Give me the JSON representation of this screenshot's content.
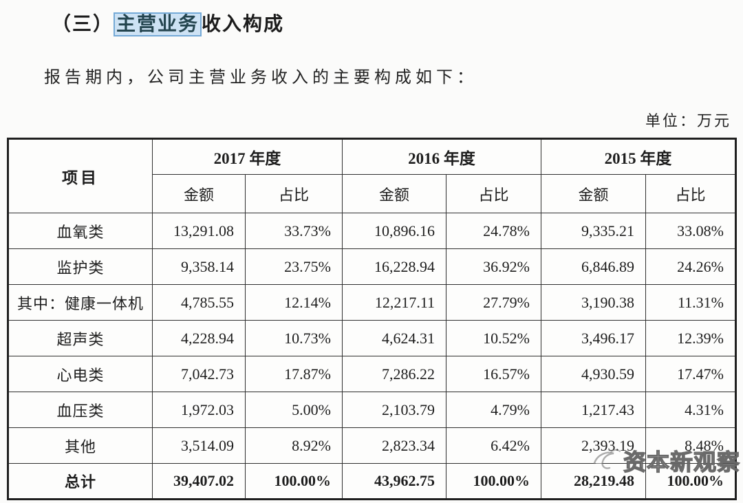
{
  "page": {
    "section_title_prefix": "（三）",
    "section_title_highlight": "主营业务",
    "section_title_suffix": "收入构成",
    "subtitle": "报告期内，公司主营业务收入的主要构成如下：",
    "unit_label": "单位：万元"
  },
  "colors": {
    "highlight_bg": "#cde2f4",
    "highlight_border": "#74a9d6",
    "table_border": "#2e2e2e",
    "page_bg": "#fbfbfa"
  },
  "watermark": {
    "text": "资本新观察",
    "logo_icon": "swirl-bird-logo"
  },
  "table": {
    "header": {
      "item": "项目",
      "year_groups": [
        "2017 年度",
        "2016 年度",
        "2015 年度"
      ],
      "amount_label": "金额",
      "share_label": "占比"
    },
    "rows": [
      {
        "label": "血氧类",
        "cells": [
          "13,291.08",
          "33.73%",
          "10,896.16",
          "24.78%",
          "9,335.21",
          "33.08%"
        ],
        "is_total": false
      },
      {
        "label": "监护类",
        "cells": [
          "9,358.14",
          "23.75%",
          "16,228.94",
          "36.92%",
          "6,846.89",
          "24.26%"
        ],
        "is_total": false
      },
      {
        "label": "其中：健康一体机",
        "cells": [
          "4,785.55",
          "12.14%",
          "12,217.11",
          "27.79%",
          "3,190.38",
          "11.31%"
        ],
        "is_total": false
      },
      {
        "label": "超声类",
        "cells": [
          "4,228.94",
          "10.73%",
          "4,624.31",
          "10.52%",
          "3,496.17",
          "12.39%"
        ],
        "is_total": false
      },
      {
        "label": "心电类",
        "cells": [
          "7,042.73",
          "17.87%",
          "7,286.22",
          "16.57%",
          "4,930.59",
          "17.47%"
        ],
        "is_total": false
      },
      {
        "label": "血压类",
        "cells": [
          "1,972.03",
          "5.00%",
          "2,103.79",
          "4.79%",
          "1,217.43",
          "4.31%"
        ],
        "is_total": false
      },
      {
        "label": "其他",
        "cells": [
          "3,514.09",
          "8.92%",
          "2,823.34",
          "6.42%",
          "2,393.19",
          "8.48%"
        ],
        "is_total": false
      },
      {
        "label": "总计",
        "cells": [
          "39,407.02",
          "100.00%",
          "43,962.75",
          "100.00%",
          "28,219.48",
          "100.00%"
        ],
        "is_total": true
      }
    ]
  }
}
